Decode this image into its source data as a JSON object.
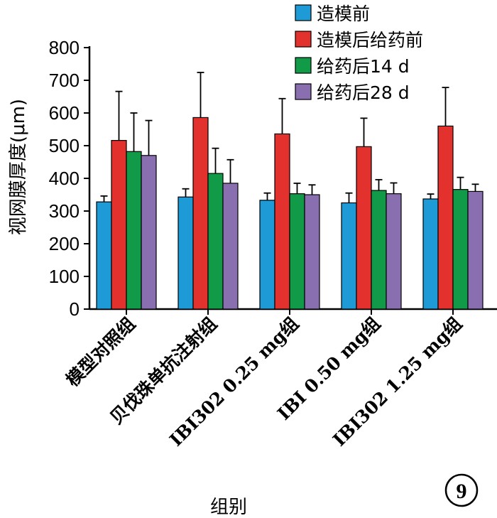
{
  "chart_data": {
    "type": "bar",
    "ylabel": "视网膜厚度(μm)",
    "xlabel": "组别",
    "ylim": [
      0,
      800
    ],
    "yticks": [
      0,
      100,
      200,
      300,
      400,
      500,
      600,
      700,
      800
    ],
    "categories": [
      "模型对照组",
      "贝伐珠单抗注射组",
      "IBI302 0.25 mg组",
      "IBI 0.50 mg组",
      "IBI302 1.25 mg组"
    ],
    "series": [
      {
        "name": "造模前",
        "color": "#1e9ad6",
        "values": [
          328,
          343,
          333,
          325,
          337
        ],
        "errors": [
          18,
          25,
          22,
          30,
          15
        ]
      },
      {
        "name": "造模后给药前",
        "color": "#e3312d",
        "values": [
          516,
          586,
          536,
          497,
          560
        ],
        "errors": [
          150,
          138,
          108,
          87,
          118
        ]
      },
      {
        "name": "给药后14 d",
        "color": "#119a47",
        "values": [
          482,
          415,
          353,
          363,
          366
        ],
        "errors": [
          118,
          77,
          32,
          33,
          37
        ]
      },
      {
        "name": "给药后28 d",
        "color": "#8a6fb0",
        "values": [
          470,
          385,
          350,
          353,
          360
        ],
        "errors": [
          107,
          72,
          30,
          33,
          22
        ]
      }
    ],
    "legend_position": "top-right",
    "grid": false
  },
  "badge": {
    "label": "9"
  }
}
